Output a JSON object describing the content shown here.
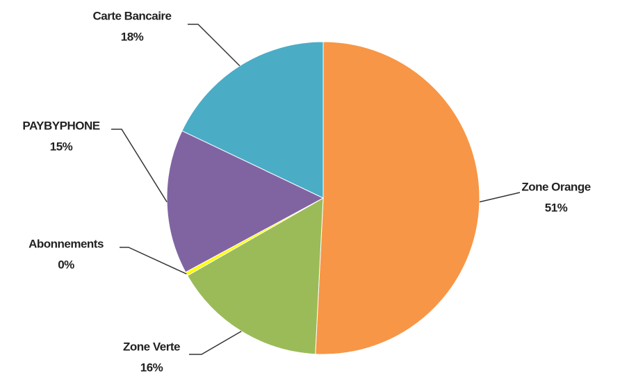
{
  "chart_data": {
    "type": "pie",
    "categories": [
      "Zone Orange",
      "Zone Verte",
      "Abonnements",
      "PAYBYPHONE",
      "Carte Bancaire"
    ],
    "values": [
      51,
      16,
      0.4,
      15,
      18
    ],
    "value_labels": [
      "51%",
      "16%",
      "0%",
      "15%",
      "18%"
    ],
    "colors": [
      "#f79646",
      "#9bbb59",
      "#ffff00",
      "#8064a2",
      "#4bacc6"
    ]
  }
}
